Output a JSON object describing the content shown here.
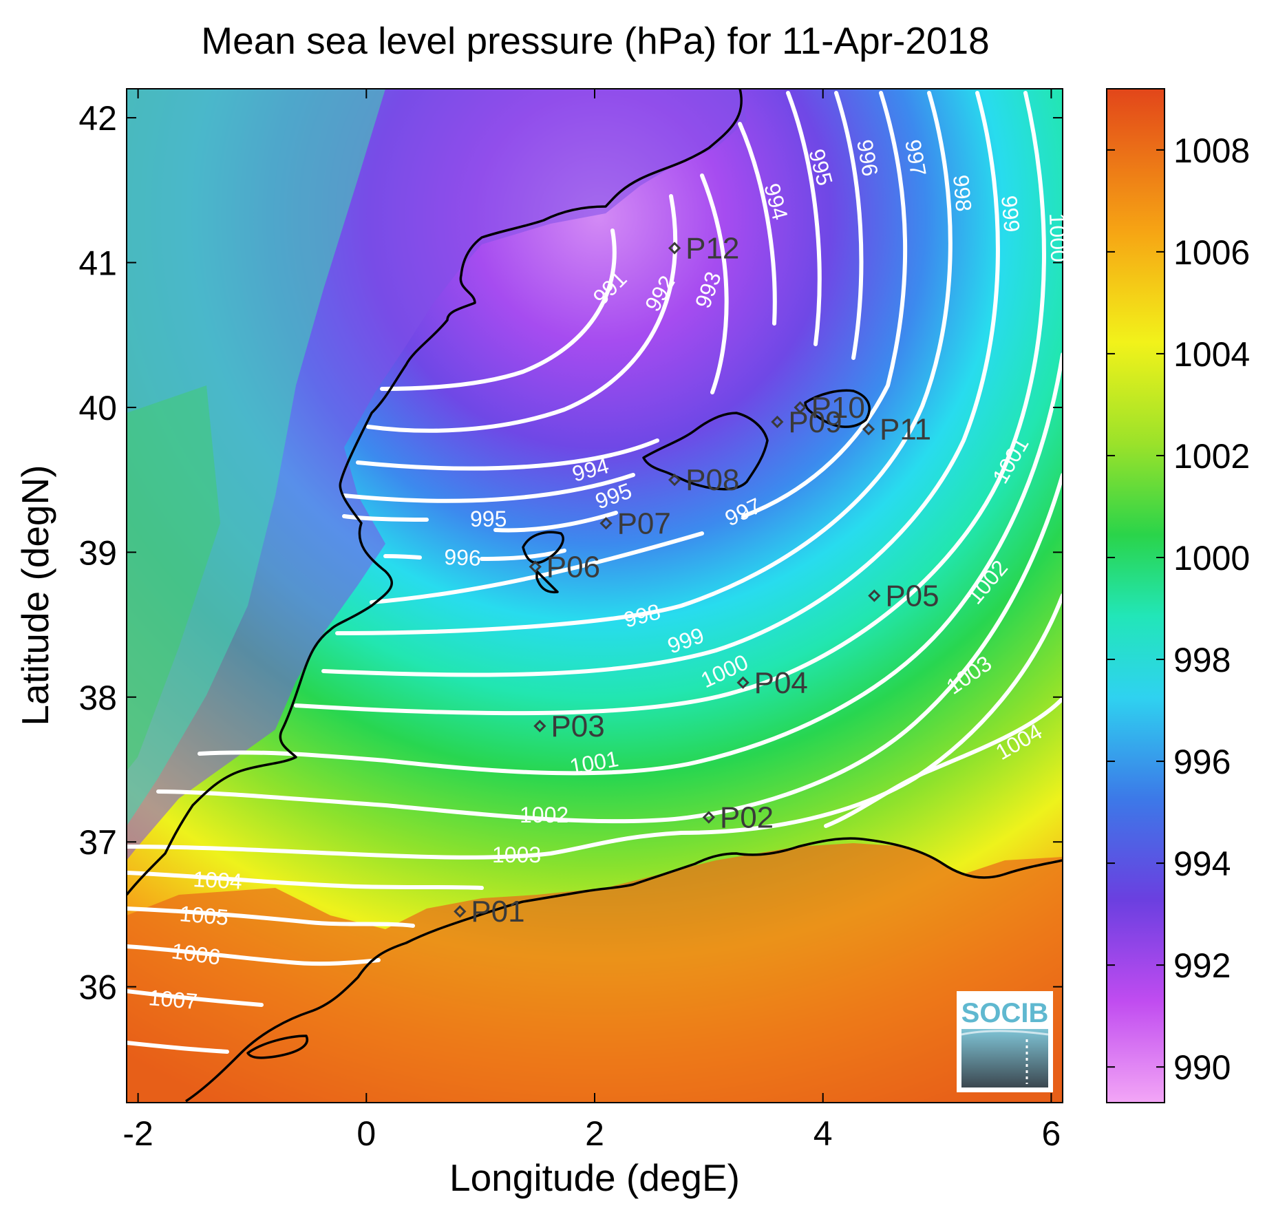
{
  "title": "Mean sea level pressure (hPa) for 11-Apr-2018",
  "axes": {
    "xlabel": "Longitude (degE)",
    "ylabel": "Latitude (degN)",
    "xlim": [
      -2.1,
      6.1
    ],
    "ylim": [
      35.2,
      42.2
    ],
    "xticks": [
      -2,
      0,
      2,
      4,
      6
    ],
    "yticks": [
      36,
      37,
      38,
      39,
      40,
      41,
      42
    ],
    "xtick_labels": [
      "-2",
      "0",
      "2",
      "4",
      "6"
    ],
    "ytick_labels": [
      "36",
      "37",
      "38",
      "39",
      "40",
      "41",
      "42"
    ]
  },
  "colorbar": {
    "range": [
      989.3,
      1009.2
    ],
    "ticks": [
      990,
      992,
      994,
      996,
      998,
      1000,
      1002,
      1004,
      1006,
      1008
    ],
    "tick_labels": [
      "990",
      "992",
      "994",
      "996",
      "998",
      "1000",
      "1002",
      "1004",
      "1006",
      "1008"
    ],
    "colormap": [
      "#f3a6f6",
      "#c04cf0",
      "#6b3fe0",
      "#3c79e8",
      "#2fd2f0",
      "#22e6b8",
      "#2ad44a",
      "#9be22a",
      "#f2f21a",
      "#f6a414",
      "#e2461a"
    ]
  },
  "contour_labels": [
    "991",
    "992",
    "993",
    "994",
    "995",
    "996",
    "997",
    "998",
    "999",
    "1000",
    "1001",
    "1002",
    "1003",
    "1004",
    "1005",
    "1006",
    "1007"
  ],
  "stations": [
    {
      "id": "P01",
      "lon": 0.82,
      "lat": 36.52
    },
    {
      "id": "P02",
      "lon": 3.0,
      "lat": 37.17
    },
    {
      "id": "P03",
      "lon": 1.52,
      "lat": 37.8
    },
    {
      "id": "P04",
      "lon": 3.3,
      "lat": 38.1
    },
    {
      "id": "P05",
      "lon": 4.45,
      "lat": 38.7
    },
    {
      "id": "P06",
      "lon": 1.48,
      "lat": 38.9
    },
    {
      "id": "P07",
      "lon": 2.1,
      "lat": 39.2
    },
    {
      "id": "P08",
      "lon": 2.7,
      "lat": 39.5
    },
    {
      "id": "P09",
      "lon": 3.6,
      "lat": 39.9
    },
    {
      "id": "P10",
      "lon": 3.8,
      "lat": 40.0
    },
    {
      "id": "P11",
      "lon": 4.4,
      "lat": 39.85
    },
    {
      "id": "P12",
      "lon": 2.7,
      "lat": 41.1
    }
  ],
  "logo": {
    "text": "SOCIB",
    "color": "#5fb8d0"
  }
}
